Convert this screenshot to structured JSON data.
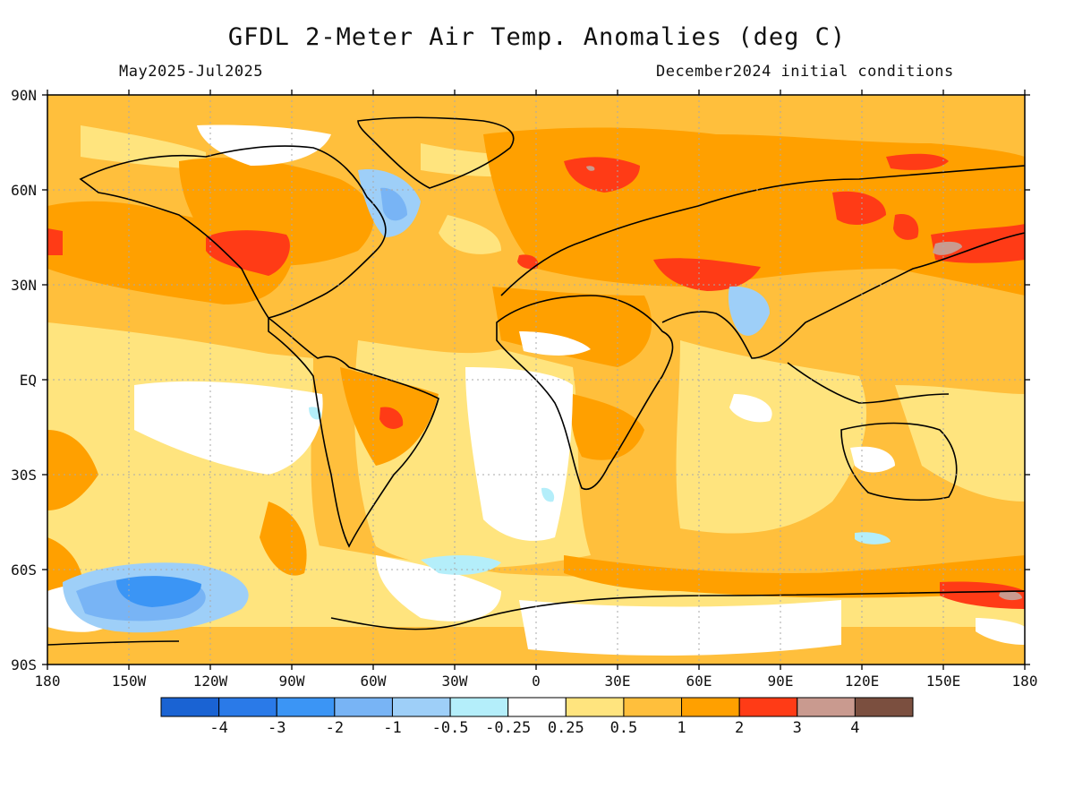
{
  "title": "GFDL 2-Meter Air Temp. Anomalies (deg C)",
  "subtitle_left": "May2025-Jul2025",
  "subtitle_right": "December2024 initial conditions",
  "longitude_ticks": [
    "180",
    "150W",
    "120W",
    "90W",
    "60W",
    "30W",
    "0",
    "30E",
    "60E",
    "90E",
    "120E",
    "150E",
    "180"
  ],
  "latitude_ticks": [
    "90N",
    "60N",
    "30N",
    "EQ",
    "30S",
    "60S",
    "90S"
  ],
  "colorbar": {
    "colors": [
      "#1a63d3",
      "#2a7ae8",
      "#3b95f5",
      "#78b4f5",
      "#9ecff8",
      "#b4eefa",
      "#ffffff",
      "#ffe47e",
      "#ffbf3c",
      "#ffa000",
      "#ff3b16",
      "#c99a8f",
      "#7b4f3f"
    ],
    "labels": [
      "-4",
      "-3",
      "-2",
      "-1",
      "-0.5",
      "-0.25",
      "0.25",
      "0.5",
      "1",
      "2",
      "3",
      "4"
    ]
  },
  "legend_colors": {
    "base_anomaly": "#ffbf3c",
    "ocean_mild": "#ffe47e",
    "warm": "#ffa000",
    "hot": "#ff3b16",
    "near_zero": "#ffffff",
    "cold": "#78b4f5",
    "cool": "#9ecff8",
    "coldest": "#3b95f5",
    "extreme": "#c99a8f"
  }
}
